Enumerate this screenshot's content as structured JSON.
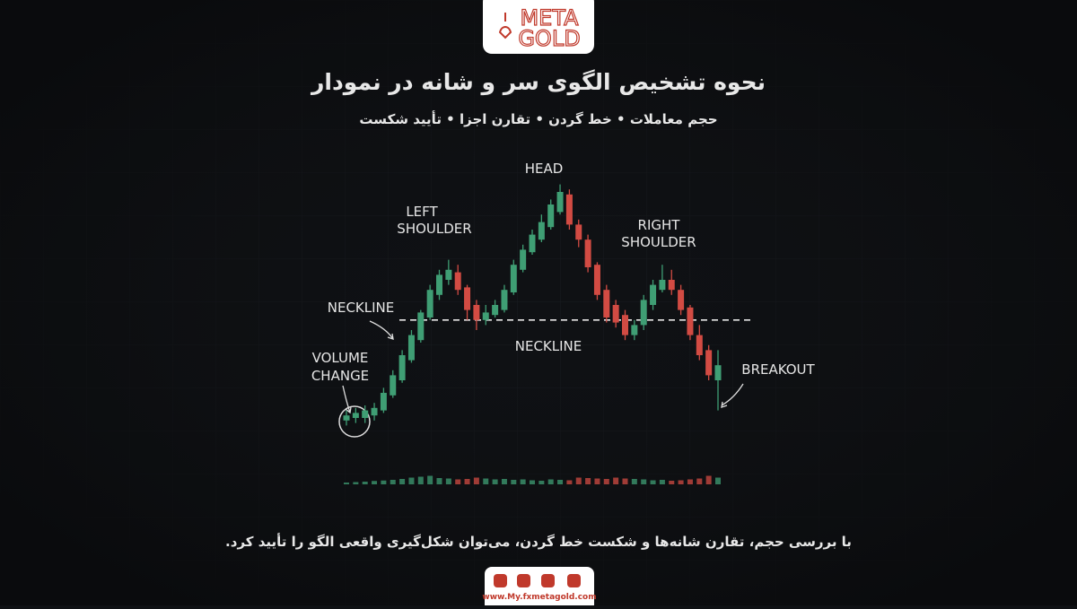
{
  "logo": {
    "top": "META",
    "bottom": "GOLD"
  },
  "chart_data": {
    "type": "candlestick",
    "title": "نحوه تشخیص الگوی سر و شانه در نمودار",
    "subtitle": "حجم معاملات • خط گردن • تقارن اجزا • تأیید شکست",
    "annotations": {
      "head": "HEAD",
      "left_shoulder": [
        "LEFT",
        "SHOULDER"
      ],
      "right_shoulder": [
        "RIGHT",
        "SHOULDER"
      ],
      "neckline_top": "NECKLINE",
      "neckline_mid": "NECKLINE",
      "volume_change": [
        "VOLUME",
        "CHANGE"
      ],
      "breakout": "BREAKOUT"
    },
    "open": [
      4,
      5,
      5,
      6,
      8,
      14,
      20,
      28,
      36,
      45,
      54,
      60,
      63,
      57,
      50,
      44,
      46,
      48,
      55,
      64,
      71,
      76,
      81,
      87,
      94,
      82,
      76,
      66,
      56,
      50,
      46,
      38,
      42,
      50,
      56,
      60,
      56,
      49,
      38,
      32,
      20
    ],
    "close": [
      6,
      7,
      8,
      9,
      15,
      22,
      30,
      38,
      47,
      56,
      62,
      64,
      56,
      48,
      44,
      47,
      50,
      56,
      66,
      72,
      78,
      83,
      90,
      95,
      82,
      76,
      65,
      54,
      45,
      43,
      38,
      42,
      52,
      58,
      60,
      56,
      48,
      38,
      30,
      22,
      26
    ],
    "high": [
      8,
      9,
      10,
      11,
      17,
      24,
      32,
      40,
      48,
      58,
      64,
      68,
      66,
      58,
      52,
      50,
      52,
      58,
      68,
      74,
      80,
      86,
      92,
      98,
      96,
      84,
      78,
      67,
      58,
      52,
      48,
      44,
      54,
      60,
      66,
      64,
      58,
      50,
      42,
      34,
      32
    ],
    "low": [
      2,
      3,
      3,
      4,
      7,
      13,
      19,
      27,
      35,
      44,
      52,
      58,
      54,
      44,
      40,
      42,
      45,
      47,
      54,
      63,
      70,
      75,
      80,
      86,
      80,
      73,
      63,
      52,
      43,
      41,
      36,
      36,
      40,
      48,
      55,
      54,
      46,
      36,
      28,
      20,
      8
    ],
    "volume": [
      8,
      10,
      12,
      15,
      17,
      20,
      24,
      30,
      34,
      38,
      28,
      26,
      22,
      24,
      30,
      26,
      22,
      24,
      20,
      22,
      18,
      16,
      22,
      20,
      18,
      30,
      28,
      26,
      24,
      30,
      26,
      24,
      22,
      18,
      20,
      16,
      18,
      22,
      26,
      38,
      30
    ],
    "neckline_value": 44,
    "ylim": [
      0,
      100
    ],
    "y2lim": [
      0,
      100
    ],
    "up_color": "#3f9e74",
    "down_color": "#d24b43"
  },
  "caption": "با بررسی حجم، تقارن شانه‌ها و شکست خط گردن، می‌توان شکل‌گیری واقعی الگو را تأیید کرد.",
  "footer": {
    "url": "www.My.fxmetagold.com"
  }
}
